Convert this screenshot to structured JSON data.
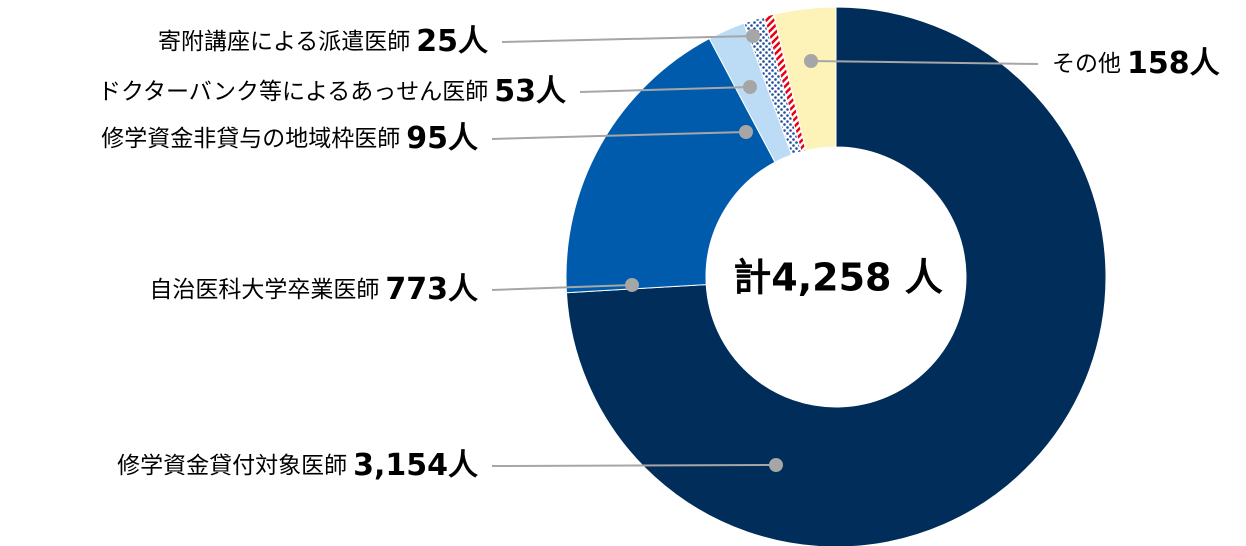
{
  "chart_data": {
    "type": "donut",
    "categories": [
      "修学資金貸付対象医師",
      "自治医科大学卒業医師",
      "修学資金非貸与の地域枠医師",
      "ドクターバンク等によるあっせん医師",
      "寄附講座による派遣医師",
      "その他"
    ],
    "values": [
      3154,
      773,
      95,
      53,
      25,
      158
    ],
    "value_labels": [
      "3,154人",
      "773人",
      "95人",
      "53人",
      "25人",
      "158人"
    ],
    "colors": [
      "#002d5a",
      "#005bac",
      "#bcdcf5",
      "#1f4e9c",
      "#e60012",
      "#fdf2b8"
    ],
    "hatched": [
      false,
      false,
      false,
      true,
      true,
      false
    ],
    "center_label": "計4,258 人"
  }
}
